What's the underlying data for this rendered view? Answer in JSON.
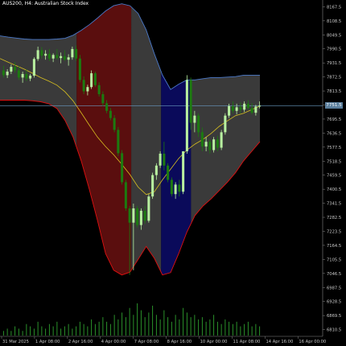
{
  "window": {
    "title": "AUS200, H4:  Australian Stock Index"
  },
  "current_price": "7751.5",
  "colors": {
    "background": "#000000",
    "grid": "#2a2a2a",
    "axis_text": "#c8c8c8",
    "bull_candle": "#b8f0a0",
    "bear_candle": "#1c7a10",
    "band_upper": "#4a78c8",
    "band_lower": "#e01010",
    "midline": "#d8c020",
    "zone_red": "#5a0e0e",
    "zone_navy": "#0a0a5a",
    "zone_gray": "#3a3a3a",
    "volume": "#2fa02f",
    "price_line": "#6a9ac0"
  },
  "chart_data": {
    "type": "candlestick",
    "symbol": "AUS200",
    "timeframe": "H4",
    "y_ticks": [
      "8167.5",
      "8108.5",
      "8049.5",
      "7990.5",
      "7931.5",
      "7872.5",
      "7813.5",
      "7754.5",
      "7695.5",
      "7636.5",
      "7577.5",
      "7518.5",
      "7459.5",
      "7400.5",
      "7341.5",
      "7282.5",
      "7223.5",
      "7164.5",
      "7105.5",
      "7046.5",
      "6987.5",
      "6928.5",
      "6869.5",
      "6810.5"
    ],
    "ylim": [
      6782,
      8196
    ],
    "x_ticks": [
      "31 Mar 2025",
      "1 Apr 08:00",
      "2 Apr 16:00",
      "4 Apr 00:00",
      "7 Apr 08:00",
      "8 Apr 16:00",
      "10 Apr 00:00",
      "11 Apr 08:00",
      "14 Apr 16:00",
      "16 Apr 00:00"
    ],
    "upper_band": [
      8045,
      8040,
      8036,
      8032,
      8030,
      8030,
      8030,
      8032,
      8035,
      8048,
      8068,
      8092,
      8120,
      8150,
      8172,
      8180,
      8172,
      8140,
      8070,
      7970,
      7880,
      7820,
      7842,
      7860,
      7860,
      7865,
      7870,
      7870,
      7872,
      7874,
      7880,
      7880,
      7880
    ],
    "lower_band": [
      7775,
      7775,
      7775,
      7775,
      7772,
      7768,
      7760,
      7740,
      7690,
      7620,
      7520,
      7400,
      7270,
      7130,
      7060,
      7040,
      7052,
      7105,
      7160,
      7110,
      7040,
      7050,
      7130,
      7220,
      7290,
      7330,
      7360,
      7395,
      7430,
      7470,
      7520,
      7560,
      7600
    ],
    "midline": [
      7950,
      7935,
      7920,
      7905,
      7888,
      7870,
      7855,
      7838,
      7810,
      7772,
      7722,
      7670,
      7620,
      7580,
      7545,
      7505,
      7462,
      7410,
      7378,
      7390,
      7440,
      7485,
      7530,
      7565,
      7590,
      7610,
      7635,
      7665,
      7688,
      7710,
      7720,
      7735,
      7750
    ],
    "candles": [
      {
        "o": 7900,
        "h": 7920,
        "l": 7870,
        "c": 7880
      },
      {
        "o": 7880,
        "h": 7905,
        "l": 7868,
        "c": 7895
      },
      {
        "o": 7895,
        "h": 7925,
        "l": 7885,
        "c": 7915
      },
      {
        "o": 7915,
        "h": 7935,
        "l": 7890,
        "c": 7900
      },
      {
        "o": 7900,
        "h": 7918,
        "l": 7860,
        "c": 7870
      },
      {
        "o": 7870,
        "h": 7895,
        "l": 7848,
        "c": 7885
      },
      {
        "o": 7885,
        "h": 7905,
        "l": 7855,
        "c": 7866
      },
      {
        "o": 7866,
        "h": 7885,
        "l": 7855,
        "c": 7878
      },
      {
        "o": 7878,
        "h": 7955,
        "l": 7870,
        "c": 7948
      },
      {
        "o": 7948,
        "h": 8000,
        "l": 7940,
        "c": 7985
      },
      {
        "o": 7985,
        "h": 7998,
        "l": 7950,
        "c": 7962
      },
      {
        "o": 7962,
        "h": 7985,
        "l": 7945,
        "c": 7970
      },
      {
        "o": 7970,
        "h": 7990,
        "l": 7940,
        "c": 7950
      },
      {
        "o": 7950,
        "h": 7972,
        "l": 7935,
        "c": 7965
      },
      {
        "o": 7965,
        "h": 7990,
        "l": 7945,
        "c": 7952
      },
      {
        "o": 7952,
        "h": 7975,
        "l": 7930,
        "c": 7960
      },
      {
        "o": 7960,
        "h": 7985,
        "l": 7940,
        "c": 7945
      },
      {
        "o": 7945,
        "h": 7968,
        "l": 7920,
        "c": 7955
      },
      {
        "o": 7955,
        "h": 8000,
        "l": 7945,
        "c": 7990
      },
      {
        "o": 7990,
        "h": 8005,
        "l": 7940,
        "c": 7950
      },
      {
        "o": 7950,
        "h": 7965,
        "l": 7850,
        "c": 7860
      },
      {
        "o": 7860,
        "h": 7875,
        "l": 7800,
        "c": 7812
      },
      {
        "o": 7812,
        "h": 7840,
        "l": 7795,
        "c": 7830
      },
      {
        "o": 7830,
        "h": 7900,
        "l": 7822,
        "c": 7888
      },
      {
        "o": 7888,
        "h": 7895,
        "l": 7830,
        "c": 7838
      },
      {
        "o": 7838,
        "h": 7850,
        "l": 7790,
        "c": 7800
      },
      {
        "o": 7800,
        "h": 7812,
        "l": 7750,
        "c": 7762
      },
      {
        "o": 7762,
        "h": 7775,
        "l": 7720,
        "c": 7730
      },
      {
        "o": 7730,
        "h": 7742,
        "l": 7690,
        "c": 7700
      },
      {
        "o": 7700,
        "h": 7712,
        "l": 7640,
        "c": 7650
      },
      {
        "o": 7650,
        "h": 7662,
        "l": 7540,
        "c": 7552
      },
      {
        "o": 7552,
        "h": 7565,
        "l": 7420,
        "c": 7430
      },
      {
        "o": 7430,
        "h": 7440,
        "l": 7310,
        "c": 7320
      },
      {
        "o": 7320,
        "h": 7330,
        "l": 7040,
        "c": 7260
      },
      {
        "o": 7260,
        "h": 7340,
        "l": 7060,
        "c": 7320
      },
      {
        "o": 7320,
        "h": 7330,
        "l": 7240,
        "c": 7250
      },
      {
        "o": 7250,
        "h": 7320,
        "l": 7230,
        "c": 7310
      },
      {
        "o": 7310,
        "h": 7330,
        "l": 7255,
        "c": 7268
      },
      {
        "o": 7268,
        "h": 7380,
        "l": 7260,
        "c": 7370
      },
      {
        "o": 7370,
        "h": 7470,
        "l": 7360,
        "c": 7460
      },
      {
        "o": 7460,
        "h": 7510,
        "l": 7440,
        "c": 7500
      },
      {
        "o": 7500,
        "h": 7560,
        "l": 7490,
        "c": 7550
      },
      {
        "o": 7550,
        "h": 7600,
        "l": 7480,
        "c": 7500
      },
      {
        "o": 7500,
        "h": 7510,
        "l": 7430,
        "c": 7440
      },
      {
        "o": 7440,
        "h": 7450,
        "l": 7370,
        "c": 7380
      },
      {
        "o": 7380,
        "h": 7430,
        "l": 7360,
        "c": 7420
      },
      {
        "o": 7420,
        "h": 7440,
        "l": 7370,
        "c": 7390
      },
      {
        "o": 7390,
        "h": 7560,
        "l": 7380,
        "c": 7560
      },
      {
        "o": 7560,
        "h": 7880,
        "l": 7550,
        "c": 7860
      },
      {
        "o": 7860,
        "h": 7870,
        "l": 7650,
        "c": 7680
      },
      {
        "o": 7680,
        "h": 7730,
        "l": 7640,
        "c": 7710
      },
      {
        "o": 7710,
        "h": 7720,
        "l": 7620,
        "c": 7640
      },
      {
        "o": 7640,
        "h": 7660,
        "l": 7560,
        "c": 7580
      },
      {
        "o": 7580,
        "h": 7620,
        "l": 7560,
        "c": 7600
      },
      {
        "o": 7600,
        "h": 7610,
        "l": 7550,
        "c": 7565
      },
      {
        "o": 7565,
        "h": 7620,
        "l": 7555,
        "c": 7610
      },
      {
        "o": 7610,
        "h": 7625,
        "l": 7560,
        "c": 7575
      },
      {
        "o": 7575,
        "h": 7650,
        "l": 7565,
        "c": 7640
      },
      {
        "o": 7640,
        "h": 7720,
        "l": 7630,
        "c": 7710
      },
      {
        "o": 7710,
        "h": 7760,
        "l": 7700,
        "c": 7750
      },
      {
        "o": 7750,
        "h": 7770,
        "l": 7720,
        "c": 7730
      },
      {
        "o": 7730,
        "h": 7760,
        "l": 7715,
        "c": 7745
      },
      {
        "o": 7745,
        "h": 7765,
        "l": 7720,
        "c": 7735
      },
      {
        "o": 7735,
        "h": 7770,
        "l": 7725,
        "c": 7760
      },
      {
        "o": 7760,
        "h": 7775,
        "l": 7735,
        "c": 7742
      },
      {
        "o": 7742,
        "h": 7762,
        "l": 7715,
        "c": 7722
      },
      {
        "o": 7722,
        "h": 7755,
        "l": 7710,
        "c": 7748
      },
      {
        "o": 7748,
        "h": 7770,
        "l": 7740,
        "c": 7752
      }
    ],
    "zones": [
      {
        "color": "gray",
        "start": 0.0,
        "end": 0.295
      },
      {
        "color": "red",
        "start": 0.295,
        "end": 0.505
      },
      {
        "color": "gray",
        "start": 0.505,
        "end": 0.62
      },
      {
        "color": "navy",
        "start": 0.62,
        "end": 0.735
      },
      {
        "color": "gray",
        "start": 0.735,
        "end": 1.0
      }
    ],
    "volume": [
      2,
      3,
      2,
      4,
      3,
      2,
      5,
      4,
      3,
      6,
      4,
      3,
      5,
      4,
      6,
      3,
      4,
      5,
      3,
      4,
      6,
      5,
      4,
      7,
      5,
      6,
      8,
      6,
      5,
      9,
      7,
      10,
      8,
      12,
      9,
      14,
      11,
      8,
      10,
      13,
      9,
      7,
      11,
      8,
      6,
      9,
      7,
      12,
      10,
      8,
      9,
      7,
      8,
      6,
      7,
      9,
      6,
      5,
      7,
      6,
      5,
      6,
      4,
      5,
      6,
      4,
      5,
      4
    ]
  }
}
